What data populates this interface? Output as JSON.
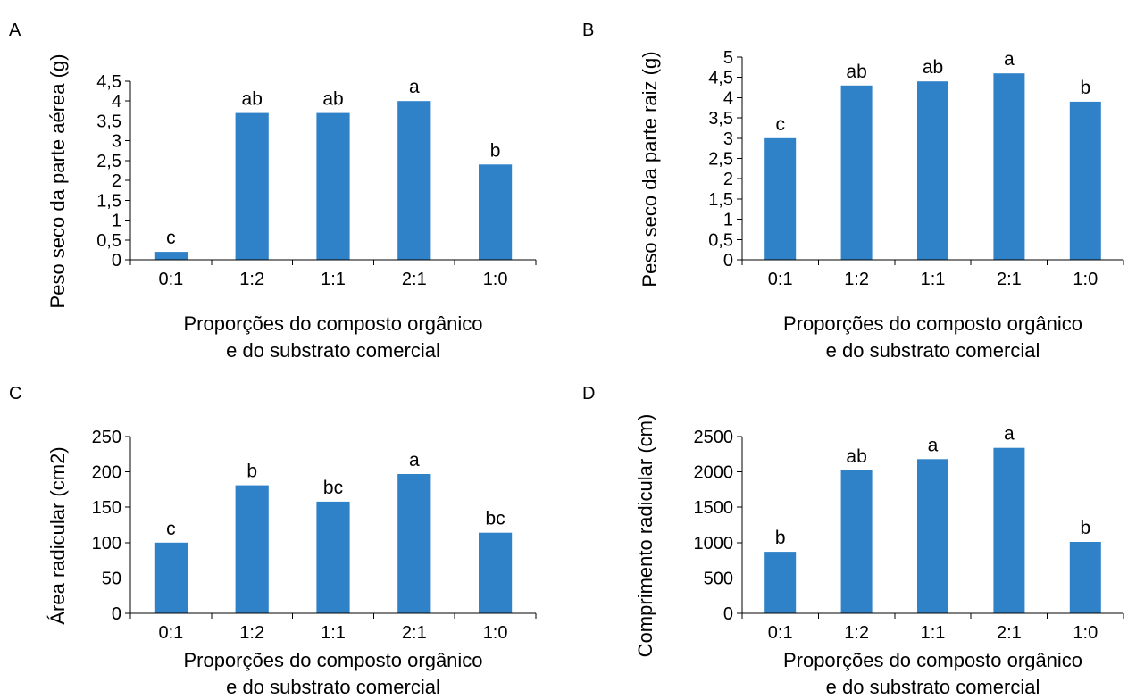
{
  "colors": {
    "bar": "#2f82c7"
  },
  "chart_data": [
    {
      "type": "bar",
      "panel": "A",
      "categories": [
        "0:1",
        "1:2",
        "1:1",
        "2:1",
        "1:0"
      ],
      "values": [
        0.2,
        3.7,
        3.7,
        4.0,
        2.4
      ],
      "labels": [
        "c",
        "ab",
        "ab",
        "a",
        "b"
      ],
      "ylabel": "Peso seco da parte aérea (g)",
      "xlabel": [
        "Proporções do composto orgânico",
        "e do substrato comercial"
      ],
      "ylim": [
        0,
        4.5
      ],
      "yticks": [
        0,
        0.5,
        1,
        1.5,
        2,
        2.5,
        3,
        3.5,
        4,
        4.5
      ],
      "ytick_labels": [
        "0",
        "0,5",
        "1",
        "1,5",
        "2",
        "2,5",
        "3",
        "3,5",
        "4",
        "4,5"
      ]
    },
    {
      "type": "bar",
      "panel": "B",
      "categories": [
        "0:1",
        "1:2",
        "1:1",
        "2:1",
        "1:0"
      ],
      "values": [
        3.0,
        4.3,
        4.4,
        4.6,
        3.9
      ],
      "labels": [
        "c",
        "ab",
        "ab",
        "a",
        "b"
      ],
      "ylabel": "Peso seco da parte raiz (g)",
      "xlabel": [
        "Proporções do composto orgânico",
        "e do substrato comercial"
      ],
      "ylim": [
        0,
        5
      ],
      "yticks": [
        0,
        0.5,
        1,
        1.5,
        2,
        2.5,
        3,
        3.5,
        4,
        4.5,
        5
      ],
      "ytick_labels": [
        "0",
        "0,5",
        "1",
        "1,5",
        "2",
        "2,5",
        "3",
        "3,5",
        "4",
        "4,5",
        "5"
      ]
    },
    {
      "type": "bar",
      "panel": "C",
      "categories": [
        "0:1",
        "1:2",
        "1:1",
        "2:1",
        "1:0"
      ],
      "values": [
        100,
        181,
        158,
        197,
        114
      ],
      "labels": [
        "c",
        "b",
        "bc",
        "a",
        "bc"
      ],
      "ylabel": "Área radicular (cm2)",
      "xlabel": [
        "Proporções do composto orgânico",
        "e do substrato comercial"
      ],
      "ylim": [
        0,
        250
      ],
      "yticks": [
        0,
        50,
        100,
        150,
        200,
        250
      ],
      "ytick_labels": [
        "0",
        "50",
        "100",
        "150",
        "200",
        "250"
      ]
    },
    {
      "type": "bar",
      "panel": "D",
      "categories": [
        "0:1",
        "1:2",
        "1:1",
        "2:1",
        "1:0"
      ],
      "values": [
        870,
        2020,
        2180,
        2340,
        1010
      ],
      "labels": [
        "b",
        "ab",
        "a",
        "a",
        "b"
      ],
      "ylabel": "Comprimento radicular (cm)",
      "xlabel": [
        "Proporções do composto orgânico",
        "e do substrato comercial"
      ],
      "ylim": [
        0,
        2500
      ],
      "yticks": [
        0,
        500,
        1000,
        1500,
        2000,
        2500
      ],
      "ytick_labels": [
        "0",
        "500",
        "1000",
        "1500",
        "2000",
        "2500"
      ]
    }
  ]
}
